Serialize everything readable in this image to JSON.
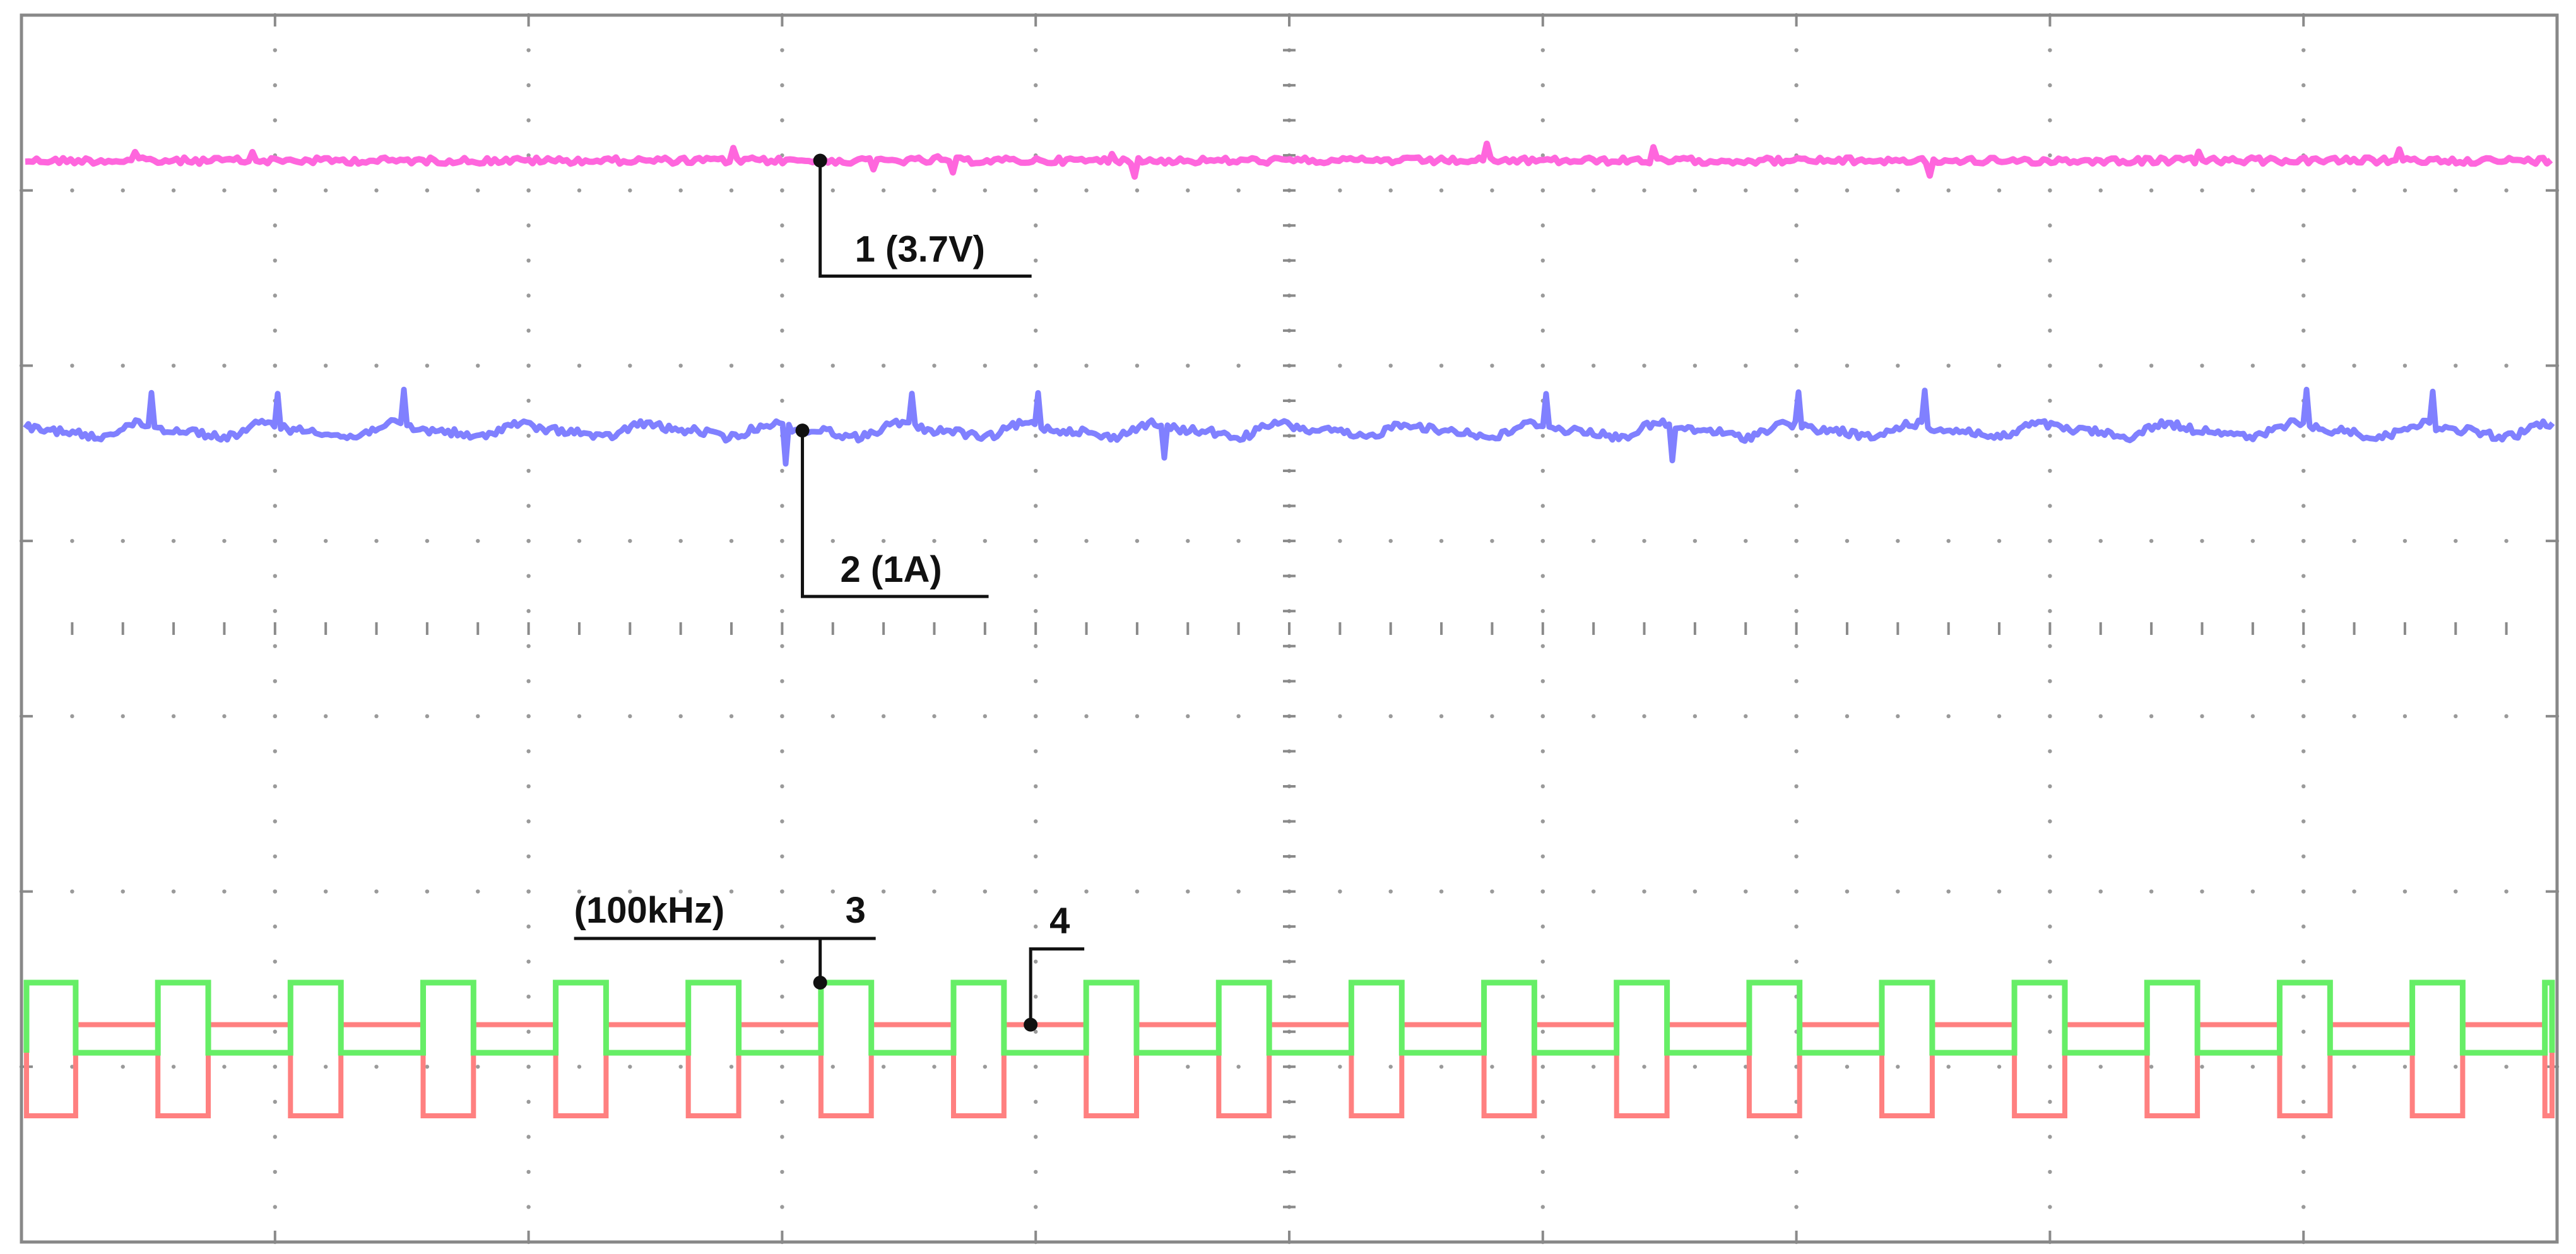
{
  "chart_data": {
    "type": "line",
    "title": "",
    "xlabel": "",
    "ylabel": "",
    "grid": true,
    "divisions": {
      "x": 10,
      "y": 7
    },
    "xlim": [
      0,
      10
    ],
    "ylim": [
      0,
      7
    ],
    "series": [
      {
        "name": "1 (3.7V)",
        "color": "#ff66dd",
        "level": 6.17,
        "marker_x": 3.15
      },
      {
        "name": "2 (1A)",
        "color": "#8080ff",
        "level": 4.63,
        "ripple": 0.05,
        "cycles": 20,
        "marker_x": 3.08
      },
      {
        "name": "3",
        "color": "#66ee66",
        "high": 1.48,
        "low": 1.08,
        "period": 0.523,
        "first_rise": 0.538,
        "duty": 0.38,
        "marker_x": 3.15
      },
      {
        "name": "4",
        "color": "#ff8080",
        "high": 1.24,
        "low": 0.72,
        "period": 0.523,
        "first_rise": 0.538,
        "duty": 0.38,
        "marker_x": 3.98
      }
    ],
    "annotations": [
      {
        "text": "1  (3.7V)",
        "series": 0
      },
      {
        "text": "2  (1A)",
        "series": 1
      },
      {
        "text": "(100kHz)",
        "series": 2
      },
      {
        "text": "3",
        "series": 2
      },
      {
        "text": "4",
        "series": 3
      }
    ]
  }
}
